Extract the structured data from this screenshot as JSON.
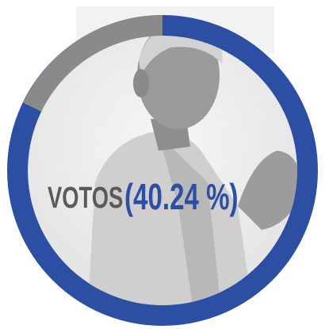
{
  "label": "VOTOS",
  "value_text": "(40.24 %)"
}
